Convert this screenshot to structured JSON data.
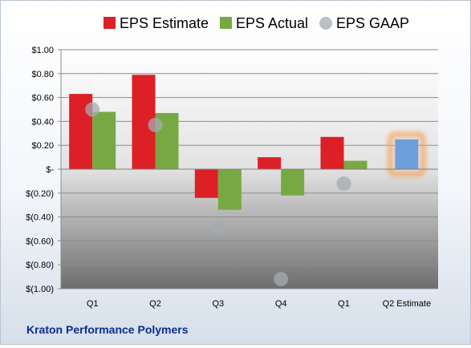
{
  "chart_data": {
    "type": "bar",
    "categories": [
      "Q1",
      "Q2",
      "Q3",
      "Q4",
      "Q1",
      "Q2 Estimate"
    ],
    "series": [
      {
        "name": "EPS Estimate",
        "color": "#dd1f26",
        "values": [
          0.63,
          0.79,
          -0.24,
          0.1,
          0.27,
          null
        ]
      },
      {
        "name": "EPS Actual",
        "color": "#78a843",
        "values": [
          0.48,
          0.47,
          -0.34,
          -0.22,
          0.07,
          null
        ]
      },
      {
        "name": "EPS GAAP",
        "color": "#a6aab0",
        "marker": "circle",
        "values": [
          0.5,
          0.37,
          -0.49,
          -0.92,
          -0.12,
          null
        ]
      }
    ],
    "highlight": {
      "category": "Q2 Estimate",
      "value": 0.25,
      "color": "#6f9edc",
      "glow": "#f4a460"
    },
    "ylim": [
      -1.0,
      1.0
    ],
    "yticks": [
      1.0,
      0.8,
      0.6,
      0.4,
      0.2,
      0,
      -0.2,
      -0.4,
      -0.6,
      -0.8,
      -1.0
    ],
    "ytick_labels": [
      "$1.00",
      "$0.80",
      "$0.60",
      "$0.40",
      "$0.20",
      "$-",
      "$(0.20)",
      "$(0.40)",
      "$(0.60)",
      "$(0.80)",
      "$(1.00)"
    ],
    "grid": true,
    "legend": "top"
  },
  "company": "Kraton Performance Polymers"
}
